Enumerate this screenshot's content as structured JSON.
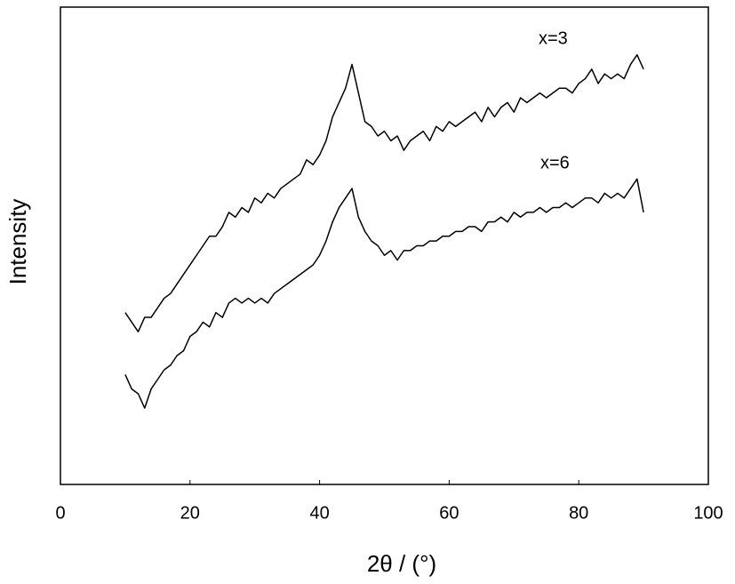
{
  "chart_data": {
    "type": "line",
    "xlabel": "2θ / (°)",
    "ylabel": "Intensity",
    "annotations": [
      "x=3",
      "x=6"
    ],
    "x": [
      10,
      11,
      12,
      13,
      14,
      15,
      16,
      17,
      18,
      19,
      20,
      21,
      22,
      23,
      24,
      25,
      26,
      27,
      28,
      29,
      30,
      31,
      32,
      33,
      34,
      35,
      36,
      37,
      38,
      39,
      40,
      41,
      42,
      43,
      44,
      45,
      46,
      47,
      48,
      49,
      50,
      51,
      52,
      53,
      54,
      55,
      56,
      57,
      58,
      59,
      60,
      61,
      62,
      63,
      64,
      65,
      66,
      67,
      68,
      69,
      70,
      71,
      72,
      73,
      74,
      75,
      76,
      77,
      78,
      79,
      80,
      81,
      82,
      83,
      84,
      85,
      86,
      87,
      88,
      89,
      90
    ],
    "series": [
      {
        "color": "#000000",
        "values": [
          36,
          34,
          32,
          35,
          35,
          37,
          39,
          40,
          42,
          44,
          46,
          48,
          50,
          52,
          52,
          54,
          57,
          56,
          58,
          57,
          60,
          59,
          61,
          60,
          62,
          63,
          64,
          65,
          68,
          67,
          69,
          72,
          77,
          80,
          83,
          88,
          82,
          76,
          75,
          73,
          74,
          72,
          73,
          70,
          72,
          73,
          74,
          72,
          75,
          74,
          76,
          75,
          76,
          77,
          78,
          76,
          79,
          77,
          79,
          80,
          78,
          81,
          80,
          81,
          82,
          81,
          82,
          83,
          83,
          82,
          84,
          85,
          87,
          84,
          86,
          85,
          86,
          85,
          88,
          90,
          87
        ]
      },
      {
        "color": "#000000",
        "values": [
          23,
          20,
          19,
          16,
          20,
          22,
          24,
          25,
          27,
          28,
          31,
          32,
          34,
          33,
          36,
          35,
          38,
          39,
          38,
          39,
          38,
          39,
          38,
          40,
          41,
          42,
          43,
          44,
          45,
          46,
          48,
          51,
          55,
          58,
          60,
          62,
          56,
          53,
          51,
          50,
          48,
          49,
          47,
          49,
          49,
          50,
          50,
          51,
          51,
          52,
          52,
          53,
          53,
          54,
          54,
          53,
          55,
          55,
          56,
          55,
          57,
          56,
          57,
          57,
          58,
          57,
          58,
          58,
          59,
          58,
          59,
          60,
          60,
          59,
          61,
          60,
          61,
          60,
          62,
          64,
          57
        ]
      }
    ],
    "xlim": [
      0,
      100
    ],
    "xticks": [
      0,
      20,
      40,
      60,
      80,
      100
    ],
    "ylim": [
      0,
      100
    ],
    "grid": false
  }
}
